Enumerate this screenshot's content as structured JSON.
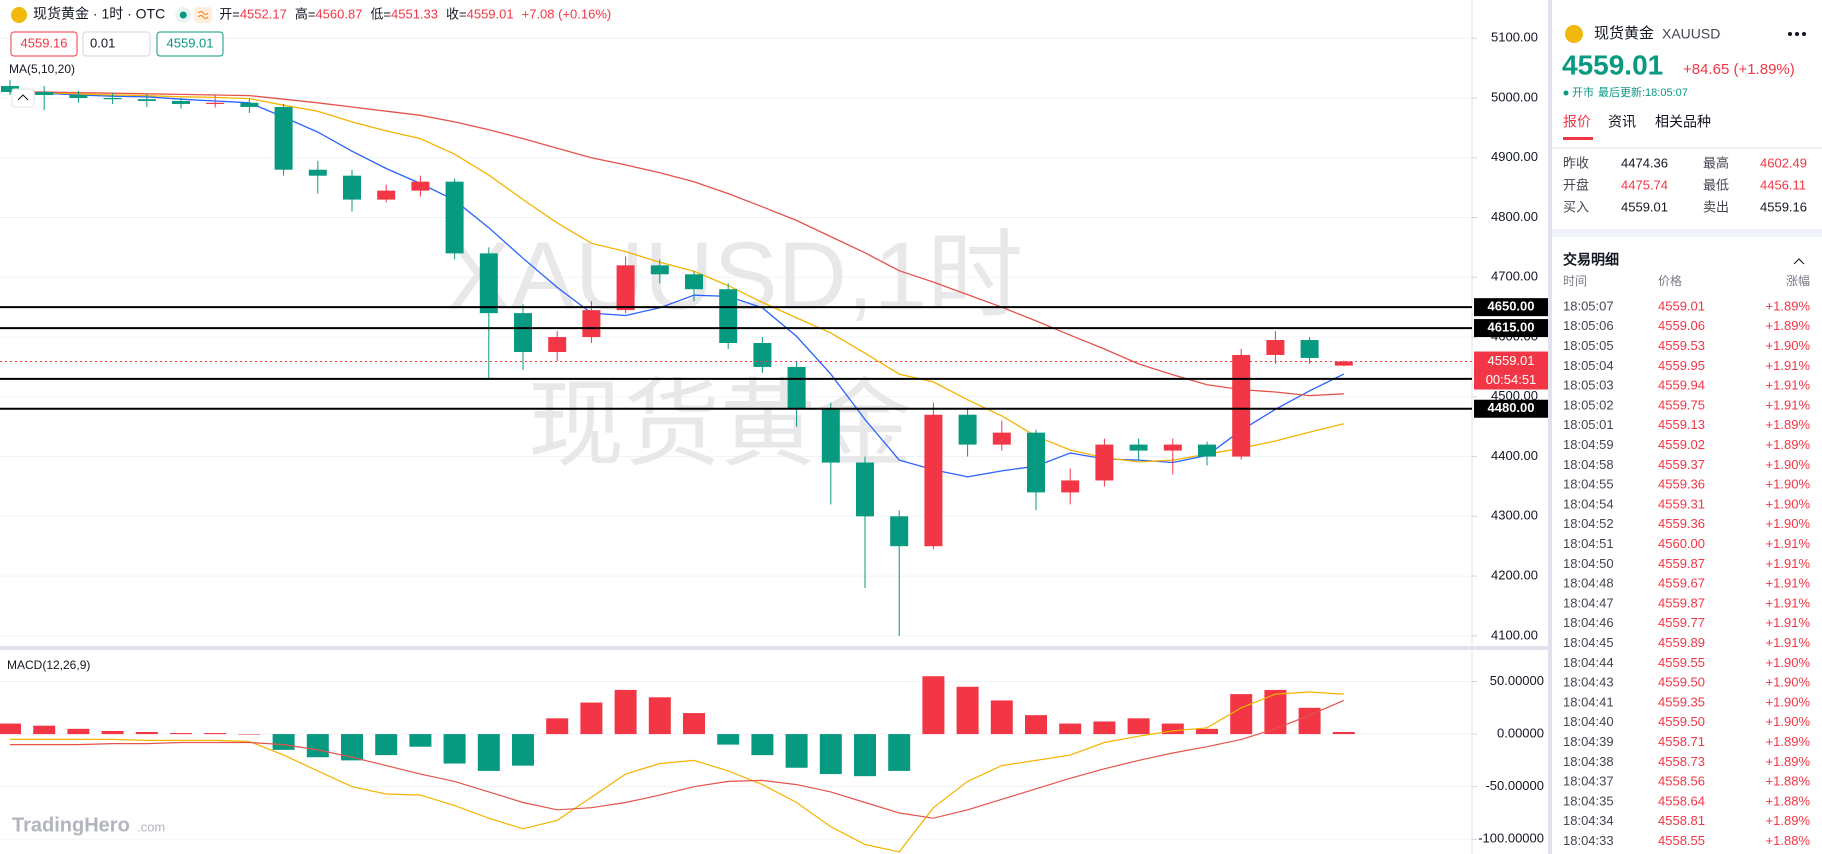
{
  "header": {
    "symbol": "现货黄金 · 1时 · OTC",
    "ohlc": [
      {
        "label": "开=",
        "value": "4552.17"
      },
      {
        "label": "高=",
        "value": "4560.87"
      },
      {
        "label": "低=",
        "value": "4551.33"
      },
      {
        "label": "收=",
        "value": "4559.01"
      }
    ],
    "change": "+7.08 (+0.16%)",
    "sell": "4559.16",
    "qty": "0.01",
    "buy": "4559.01"
  },
  "chart_data": [
    {
      "type": "candlestick",
      "label": "MA(5,10,20)",
      "watermark": [
        "XAUUSD,1时",
        "现货黄金"
      ],
      "up_color": "#f23645",
      "down_color": "#089981",
      "open": [
        5020,
        5010,
        5005,
        5000,
        4998,
        4995,
        4990,
        4992,
        4985,
        4880,
        4870,
        4830,
        4845,
        4860,
        4740,
        4640,
        4575,
        4600,
        4645,
        4720,
        4705,
        4680,
        4590,
        4550,
        4480,
        4390,
        4300,
        4250,
        4470,
        4420,
        4440,
        4340,
        4360,
        4420,
        4410,
        4420,
        4400,
        4570,
        4595,
        4552.17
      ],
      "high": [
        5030,
        5020,
        5012,
        5008,
        5006,
        5000,
        5005,
        4998,
        4990,
        4895,
        4880,
        4855,
        4870,
        4865,
        4750,
        4655,
        4610,
        4660,
        4735,
        4730,
        4710,
        4690,
        4600,
        4560,
        4490,
        4400,
        4310,
        4490,
        4480,
        4460,
        4445,
        4380,
        4430,
        4430,
        4430,
        4425,
        4580,
        4610,
        4600,
        4560.87
      ],
      "low": [
        5005,
        4980,
        4992,
        4990,
        4985,
        4982,
        4984,
        4975,
        4870,
        4840,
        4810,
        4825,
        4835,
        4730,
        4530,
        4545,
        4560,
        4590,
        4640,
        4690,
        4660,
        4580,
        4540,
        4450,
        4320,
        4180,
        4100,
        4245,
        4400,
        4410,
        4310,
        4320,
        4350,
        4395,
        4370,
        4385,
        4395,
        4555,
        4555,
        4551.33
      ],
      "close": [
        5010,
        5005,
        5000,
        4998,
        4995,
        4990,
        4992,
        4985,
        4880,
        4870,
        4830,
        4845,
        4860,
        4740,
        4640,
        4575,
        4600,
        4645,
        4720,
        4705,
        4680,
        4590,
        4550,
        4480,
        4390,
        4300,
        4250,
        4470,
        4420,
        4440,
        4340,
        4360,
        4420,
        4410,
        4420,
        4400,
        4570,
        4595,
        4565,
        4559.01
      ],
      "series": [
        {
          "color": "#2962ff",
          "values": [
            5010,
            5008,
            5005,
            5003,
            5002,
            4998,
            4995,
            4992,
            4968,
            4943,
            4911,
            4882,
            4857,
            4829,
            4783,
            4732,
            4683,
            4640,
            4636,
            4649,
            4670,
            4668,
            4649,
            4601,
            4538,
            4462,
            4394,
            4378,
            4366,
            4376,
            4384,
            4406,
            4396,
            4394,
            4390,
            4402,
            4444,
            4479,
            4510,
            4538
          ]
        },
        {
          "color": "#f5b400",
          "values": [
            5010,
            5009,
            5007,
            5005,
            5004,
            5002,
            5001,
            4999,
            4988,
            4978,
            4960,
            4945,
            4932,
            4906,
            4871,
            4830,
            4791,
            4757,
            4743,
            4725,
            4710,
            4686,
            4658,
            4632,
            4607,
            4573,
            4538,
            4525,
            4495,
            4468,
            4434,
            4411,
            4398,
            4391,
            4394,
            4404,
            4414,
            4426,
            4441,
            4455
          ]
        },
        {
          "color": "#e5534b",
          "values": [
            5010,
            5010,
            5009,
            5008,
            5007,
            5006,
            5005,
            5004,
            4998,
            4992,
            4985,
            4978,
            4971,
            4960,
            4947,
            4932,
            4916,
            4900,
            4888,
            4875,
            4860,
            4840,
            4818,
            4795,
            4768,
            4741,
            4711,
            4692,
            4671,
            4650,
            4627,
            4603,
            4580,
            4555,
            4537,
            4520,
            4512,
            4508,
            4502,
            4505
          ]
        }
      ],
      "ylim": [
        4088,
        5164
      ],
      "yticks": [
        {
          "value": 4100,
          "label": "4100.00"
        },
        {
          "value": 4200,
          "label": "4200.00"
        },
        {
          "value": 4300,
          "label": "4300.00"
        },
        {
          "value": 4400,
          "label": "4400.00"
        },
        {
          "value": 4500,
          "label": "4500.00"
        },
        {
          "value": 4600,
          "label": "4600.00"
        },
        {
          "value": 4700,
          "label": "4700.00"
        },
        {
          "value": 4800,
          "label": "4800.00"
        },
        {
          "value": 4900,
          "label": "4900.00"
        },
        {
          "value": 5000,
          "label": "5000.00"
        },
        {
          "value": 5100,
          "label": "5100.00"
        }
      ],
      "levels": [
        {
          "value": 4650,
          "label": "4650.00"
        },
        {
          "value": 4615,
          "label": "4615.00"
        },
        {
          "value": 4530,
          "label": "4530.00"
        },
        {
          "value": 4480,
          "label": "4480.00"
        }
      ],
      "last_price": {
        "value": 4559.01,
        "label": "4559.01"
      },
      "countdown": "00:54:51"
    },
    {
      "type": "macd",
      "label": "MACD(12,26,9)",
      "up_color": "#f23645",
      "down_color": "#089981",
      "histogram": [
        10,
        8,
        5,
        3,
        2,
        1,
        1,
        0,
        -15,
        -22,
        -25,
        -20,
        -12,
        -28,
        -35,
        -30,
        15,
        30,
        42,
        35,
        20,
        -10,
        -20,
        -32,
        -38,
        -40,
        -35,
        55,
        45,
        32,
        18,
        10,
        12,
        15,
        10,
        5,
        38,
        42,
        25,
        2
      ],
      "series": [
        {
          "color": "#f5b400",
          "values": [
            -5,
            -5,
            -5,
            -5,
            -6,
            -6,
            -6,
            -7,
            -20,
            -35,
            -50,
            -57,
            -58,
            -68,
            -80,
            -90,
            -82,
            -60,
            -38,
            -28,
            -25,
            -35,
            -48,
            -65,
            -88,
            -105,
            -112,
            -70,
            -45,
            -30,
            -25,
            -20,
            -8,
            -2,
            3,
            6,
            25,
            38,
            40,
            38
          ]
        },
        {
          "color": "#e5534b",
          "values": [
            -10,
            -10,
            -10,
            -9,
            -9,
            -8,
            -8,
            -8,
            -10,
            -15,
            -22,
            -30,
            -38,
            -45,
            -55,
            -65,
            -72,
            -70,
            -65,
            -58,
            -50,
            -45,
            -44,
            -48,
            -55,
            -65,
            -75,
            -80,
            -72,
            -62,
            -52,
            -42,
            -33,
            -25,
            -18,
            -12,
            -5,
            5,
            18,
            32
          ]
        }
      ],
      "ylim": [
        -114,
        79
      ],
      "yticks": [
        {
          "value": 50,
          "label": "50.00000"
        },
        {
          "value": 0,
          "label": "0.00000"
        },
        {
          "value": -50,
          "label": "-50.00000"
        },
        {
          "value": -100,
          "label": "-100.00000"
        }
      ]
    }
  ],
  "logo": {
    "name": "TradingHero",
    "suffix": ".com"
  },
  "panel": {
    "name": "现货黄金",
    "code": "XAUUSD",
    "price": "4559.01",
    "change": "+84.65 (+1.89%)",
    "status": "开市",
    "updated": "最后更新:18:05:07",
    "tabs": [
      "报价",
      "资讯",
      "相关品种"
    ],
    "stats": [
      [
        {
          "label": "昨收",
          "value": "4474.36",
          "color": "#131722"
        },
        {
          "label": "最高",
          "value": "4602.49",
          "color": "#f23645"
        }
      ],
      [
        {
          "label": "开盘",
          "value": "4475.74",
          "color": "#f23645"
        },
        {
          "label": "最低",
          "value": "4456.11",
          "color": "#f23645"
        }
      ],
      [
        {
          "label": "买入",
          "value": "4559.01",
          "color": "#131722"
        },
        {
          "label": "卖出",
          "value": "4559.16",
          "color": "#131722"
        }
      ]
    ],
    "trades_title": "交易明细",
    "trade_columns": [
      "时间",
      "价格",
      "涨幅"
    ],
    "trades": [
      [
        "18:05:07",
        "4559.01",
        "+1.89%"
      ],
      [
        "18:05:06",
        "4559.06",
        "+1.89%"
      ],
      [
        "18:05:05",
        "4559.53",
        "+1.90%"
      ],
      [
        "18:05:04",
        "4559.95",
        "+1.91%"
      ],
      [
        "18:05:03",
        "4559.94",
        "+1.91%"
      ],
      [
        "18:05:02",
        "4559.75",
        "+1.91%"
      ],
      [
        "18:05:01",
        "4559.13",
        "+1.89%"
      ],
      [
        "18:04:59",
        "4559.02",
        "+1.89%"
      ],
      [
        "18:04:58",
        "4559.37",
        "+1.90%"
      ],
      [
        "18:04:55",
        "4559.36",
        "+1.90%"
      ],
      [
        "18:04:54",
        "4559.31",
        "+1.90%"
      ],
      [
        "18:04:52",
        "4559.36",
        "+1.90%"
      ],
      [
        "18:04:51",
        "4560.00",
        "+1.91%"
      ],
      [
        "18:04:50",
        "4559.87",
        "+1.91%"
      ],
      [
        "18:04:48",
        "4559.67",
        "+1.91%"
      ],
      [
        "18:04:47",
        "4559.87",
        "+1.91%"
      ],
      [
        "18:04:46",
        "4559.77",
        "+1.91%"
      ],
      [
        "18:04:45",
        "4559.89",
        "+1.91%"
      ],
      [
        "18:04:44",
        "4559.55",
        "+1.90%"
      ],
      [
        "18:04:43",
        "4559.50",
        "+1.90%"
      ],
      [
        "18:04:41",
        "4559.35",
        "+1.90%"
      ],
      [
        "18:04:40",
        "4559.50",
        "+1.90%"
      ],
      [
        "18:04:39",
        "4558.71",
        "+1.89%"
      ],
      [
        "18:04:38",
        "4558.73",
        "+1.89%"
      ],
      [
        "18:04:37",
        "4558.56",
        "+1.88%"
      ],
      [
        "18:04:35",
        "4558.64",
        "+1.88%"
      ],
      [
        "18:04:34",
        "4558.81",
        "+1.89%"
      ],
      [
        "18:04:33",
        "4558.55",
        "+1.88%"
      ]
    ]
  }
}
